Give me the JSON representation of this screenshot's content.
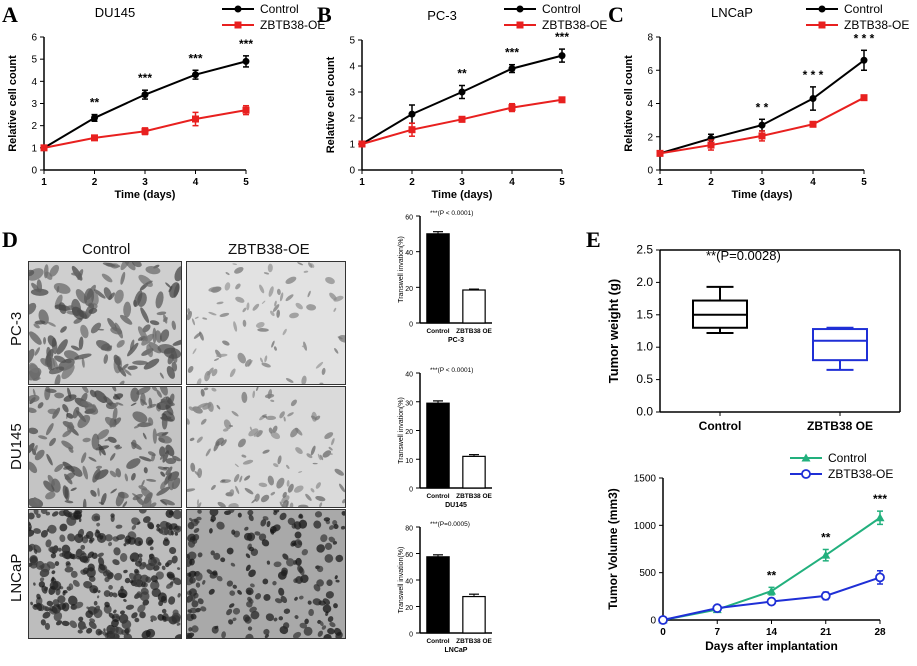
{
  "panel_letters": {
    "A": "A",
    "B": "B",
    "C": "C",
    "D": "D",
    "E": "E"
  },
  "colors": {
    "control": "#000000",
    "oe": "#e8201f",
    "tumor_control": "#22b07d",
    "tumor_oe": "#1f2fd6"
  },
  "legend_labels": {
    "control": "Control",
    "oe": "ZBTB38-OE"
  },
  "panel_d": {
    "col_headers": [
      "Control",
      "ZBTB38-OE"
    ],
    "row_headers": [
      "PC-3",
      "DU145",
      "LNCaP"
    ]
  },
  "chart_data": [
    {
      "id": "A",
      "type": "line",
      "title": "DU145",
      "xlabel": "Time (days)",
      "ylabel": "Relative cell count",
      "x": [
        1,
        2,
        3,
        4,
        5
      ],
      "xlim": [
        1,
        5
      ],
      "ylim": [
        0,
        6
      ],
      "yticks": [
        "0",
        "1",
        "2",
        "3",
        "4",
        "5",
        "6"
      ],
      "xticks": [
        "1",
        "2",
        "3",
        "4",
        "5"
      ],
      "series": [
        {
          "name": "Control",
          "values": [
            1.0,
            2.35,
            3.4,
            4.3,
            4.9
          ],
          "errors": [
            0,
            0.15,
            0.2,
            0.2,
            0.25
          ]
        },
        {
          "name": "ZBTB38-OE",
          "values": [
            1.0,
            1.45,
            1.75,
            2.3,
            2.7
          ],
          "errors": [
            0,
            0.1,
            0.15,
            0.3,
            0.2
          ]
        }
      ],
      "significance": [
        "",
        "**",
        "***",
        "***",
        "***"
      ]
    },
    {
      "id": "B",
      "type": "line",
      "title": "PC-3",
      "xlabel": "Time (days)",
      "ylabel": "Relative cell count",
      "x": [
        1,
        2,
        3,
        4,
        5
      ],
      "xlim": [
        1,
        5
      ],
      "ylim": [
        0,
        5
      ],
      "yticks": [
        "0",
        "1",
        "2",
        "3",
        "4",
        "5"
      ],
      "xticks": [
        "1",
        "2",
        "3",
        "4",
        "5"
      ],
      "series": [
        {
          "name": "Control",
          "values": [
            1.0,
            2.15,
            3.0,
            3.9,
            4.4
          ],
          "errors": [
            0,
            0.35,
            0.25,
            0.15,
            0.25
          ]
        },
        {
          "name": "ZBTB38-OE",
          "values": [
            1.0,
            1.55,
            1.95,
            2.4,
            2.7
          ],
          "errors": [
            0,
            0.25,
            0.1,
            0.15,
            0.05
          ]
        }
      ],
      "significance": [
        "",
        "",
        "**",
        "***",
        "***"
      ]
    },
    {
      "id": "C",
      "type": "line",
      "title": "LNCaP",
      "xlabel": "Time (days)",
      "ylabel": "Relative cell count",
      "x": [
        1,
        2,
        3,
        4,
        5
      ],
      "xlim": [
        1,
        5
      ],
      "ylim": [
        0,
        8
      ],
      "yticks": [
        "0",
        "2",
        "4",
        "6",
        "8"
      ],
      "xticks": [
        "1",
        "2",
        "3",
        "4",
        "5"
      ],
      "series": [
        {
          "name": "Control",
          "values": [
            1.0,
            1.9,
            2.7,
            4.3,
            6.6
          ],
          "errors": [
            0,
            0.25,
            0.35,
            0.7,
            0.6
          ]
        },
        {
          "name": "ZBTB38-OE",
          "values": [
            1.0,
            1.5,
            2.05,
            2.75,
            4.35
          ],
          "errors": [
            0,
            0.3,
            0.3,
            0.1,
            0.05
          ]
        }
      ],
      "significance": [
        "",
        "",
        "* *",
        "* * *",
        "* * *"
      ]
    },
    {
      "id": "D1",
      "type": "bar",
      "title": "PC-3",
      "ylabel": "Transwell invation(%)",
      "ylim": [
        0,
        60
      ],
      "yticks": [
        "0",
        "20",
        "40",
        "60"
      ],
      "categories": [
        "Control",
        "ZBTB38 OE"
      ],
      "values": [
        50,
        18.5
      ],
      "errors": [
        1.2,
        0.5
      ],
      "annotation": "***(P < 0.0001)"
    },
    {
      "id": "D2",
      "type": "bar",
      "title": "DU145",
      "ylabel": "Transwell invation(%)",
      "ylim": [
        0,
        40
      ],
      "yticks": [
        "0",
        "10",
        "20",
        "30",
        "40"
      ],
      "categories": [
        "Control",
        "ZBTB38 OE"
      ],
      "values": [
        29.5,
        11
      ],
      "errors": [
        0.8,
        0.6
      ],
      "annotation": "***(P < 0.0001)"
    },
    {
      "id": "D3",
      "type": "bar",
      "title": "LNCaP",
      "ylabel": "Transwell invation(%)",
      "ylim": [
        0,
        80
      ],
      "yticks": [
        "0",
        "20",
        "40",
        "60",
        "80"
      ],
      "categories": [
        "Control",
        "ZBTB38 OE"
      ],
      "values": [
        57.5,
        27.5
      ],
      "errors": [
        1.5,
        1.8
      ],
      "annotation": "***(P=0.0005)"
    },
    {
      "id": "E1",
      "type": "box",
      "title": "",
      "ylabel": "Tumor weight (g)",
      "ylim": [
        0,
        2.5
      ],
      "yticks": [
        "0.0",
        "0.5",
        "1.0",
        "1.5",
        "2.0",
        "2.5"
      ],
      "categories": [
        "Control",
        "ZBTB38 OE"
      ],
      "boxes": [
        {
          "min": 1.22,
          "q1": 1.3,
          "median": 1.5,
          "q3": 1.72,
          "max": 1.93
        },
        {
          "min": 0.65,
          "q1": 0.8,
          "median": 1.1,
          "q3": 1.28,
          "max": 1.3
        }
      ],
      "annotation": "**(P=0.0028)"
    },
    {
      "id": "E2",
      "type": "line",
      "title": "",
      "xlabel": "Days after implantation",
      "ylabel": "Tumor Volume (mm3)",
      "x": [
        0,
        7,
        14,
        21,
        28
      ],
      "xlim": [
        0,
        28
      ],
      "ylim": [
        0,
        1500
      ],
      "yticks": [
        "0",
        "500",
        "1000",
        "1500"
      ],
      "xticks": [
        "0",
        "7",
        "14",
        "21",
        "28"
      ],
      "series": [
        {
          "name": "Control",
          "values": [
            0,
            110,
            305,
            685,
            1080
          ],
          "errors": [
            0,
            10,
            40,
            60,
            70
          ]
        },
        {
          "name": "ZBTB38-OE",
          "values": [
            0,
            125,
            195,
            255,
            450
          ],
          "errors": [
            0,
            10,
            20,
            40,
            70
          ]
        }
      ],
      "significance": [
        "",
        "",
        "**",
        "**",
        "***"
      ]
    }
  ]
}
